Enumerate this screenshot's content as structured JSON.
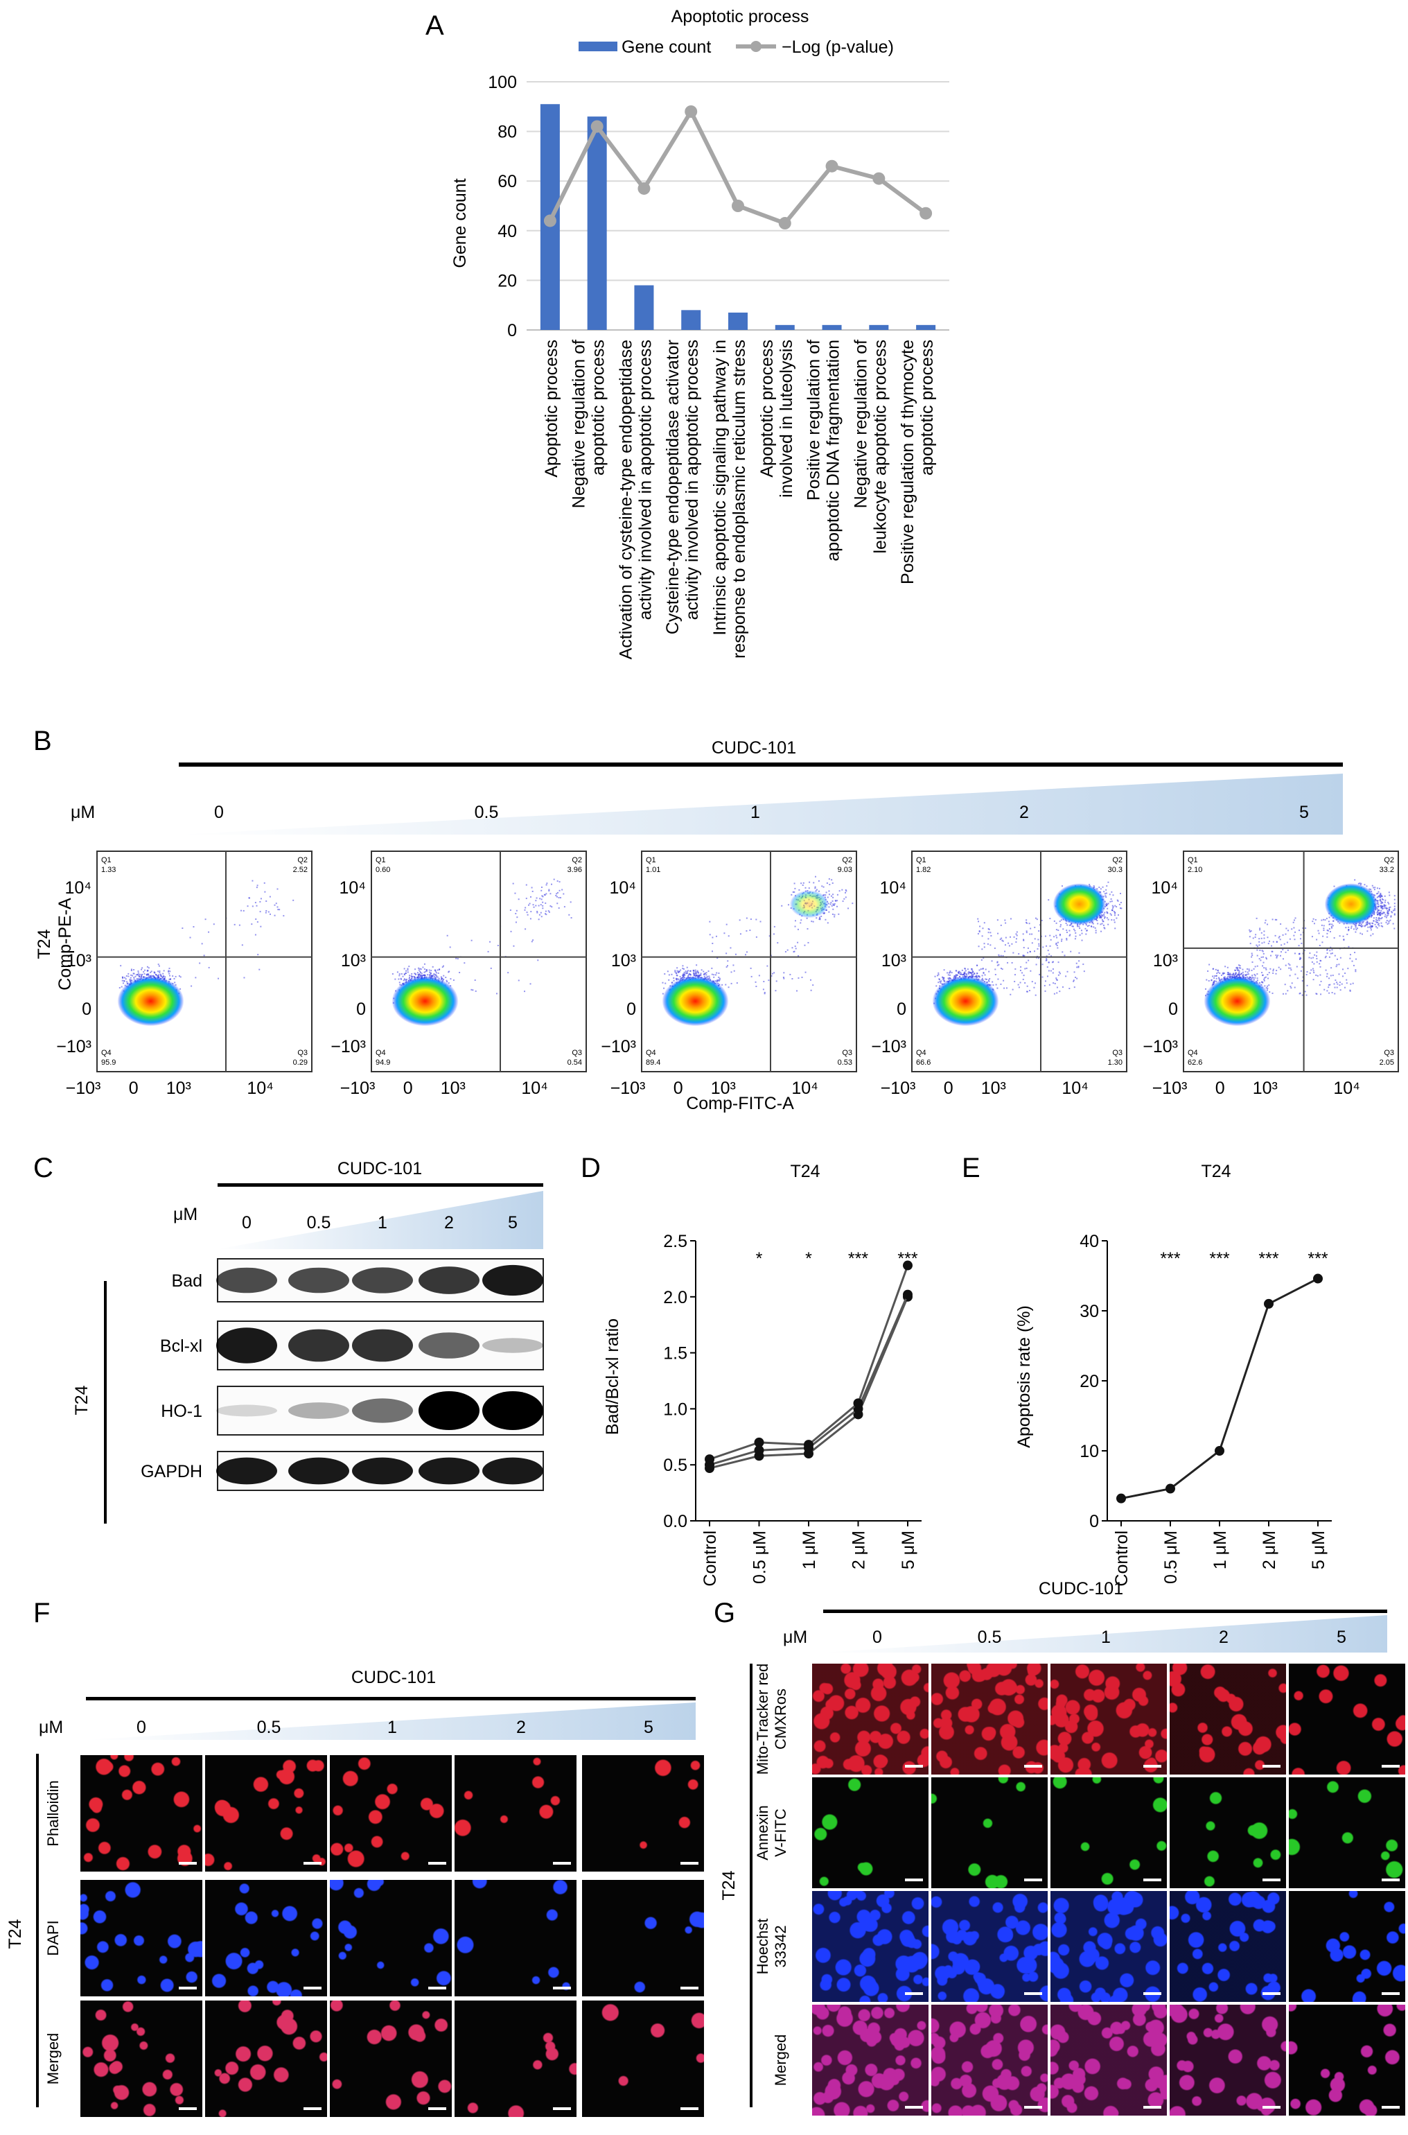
{
  "panel_letters": {
    "a": "A",
    "b": "B",
    "c": "C",
    "d": "D",
    "e": "E",
    "f": "F",
    "g": "G"
  },
  "colors": {
    "bar": "#4472c4",
    "line": "#a6a6a6",
    "triangle": "#bcd3ea",
    "red": "#c8102e",
    "blue": "#1c2fd6",
    "green": "#18c618"
  },
  "chart_data": [
    {
      "panel": "A",
      "type": "bar",
      "title": "Apoptotic process",
      "legend": {
        "bar": "Gene count",
        "line": "−Log (p-value)"
      },
      "ylabel": "Gene count",
      "ylim": [
        0,
        100
      ],
      "yticks": [
        "0",
        "20",
        "40",
        "60",
        "80",
        "100"
      ],
      "categories": [
        [
          "Apoptotic process"
        ],
        [
          "Negative regulation of",
          "apoptotic process"
        ],
        [
          "Activation of cysteine-type endopeptidase",
          "activity involved in apoptotic process"
        ],
        [
          "Cysteine-type endopeptidase activator",
          "activity involved in apoptotic process"
        ],
        [
          "Intrinsic apoptotic signaling pathway in",
          "response to endoplasmic reticulum stress"
        ],
        [
          "Apoptotic process",
          "involved in luteolysis"
        ],
        [
          "Positive regulation of",
          "apoptotic DNA fragmentation"
        ],
        [
          "Negative regulation of",
          "leukocyte apoptotic process"
        ],
        [
          "Positive regulation of thymocyte",
          "apoptotic process"
        ]
      ],
      "series": [
        {
          "name": "Gene count",
          "type": "bar",
          "values": [
            91,
            86,
            18,
            8,
            7,
            2,
            2,
            2,
            2
          ]
        },
        {
          "name": "−Log (p-value)",
          "type": "line",
          "values": [
            44,
            82,
            57,
            88,
            50,
            43,
            66,
            61,
            47
          ]
        }
      ]
    },
    {
      "panel": "D",
      "type": "line",
      "title": "T24",
      "ylabel": "Bad/Bcl-xl ratio",
      "ylim": [
        0,
        2.5
      ],
      "yticks": [
        "0.0",
        "0.5",
        "1.0",
        "1.5",
        "2.0",
        "2.5"
      ],
      "categories": [
        "Control",
        "0.5 μM",
        "1 μM",
        "2 μM",
        "5 μM"
      ],
      "significance": [
        "",
        "*",
        "*",
        "***",
        "***"
      ],
      "series": [
        {
          "values": [
            0.47,
            0.58,
            0.6,
            0.95,
            2.0
          ]
        },
        {
          "values": [
            0.5,
            0.63,
            0.65,
            1.0,
            2.02
          ]
        },
        {
          "values": [
            0.55,
            0.7,
            0.68,
            1.05,
            2.28
          ]
        }
      ]
    },
    {
      "panel": "E",
      "type": "line",
      "title": "T24",
      "ylabel": "Apoptosis rate (%)",
      "ylim": [
        0,
        40
      ],
      "yticks": [
        "0",
        "10",
        "20",
        "30",
        "40"
      ],
      "categories": [
        "Control",
        "0.5 μM",
        "1 μM",
        "2 μM",
        "5 μM"
      ],
      "significance": [
        "",
        "***",
        "***",
        "***",
        "***"
      ],
      "series": [
        {
          "values": [
            3.2,
            4.6,
            10,
            31,
            34.6
          ]
        }
      ]
    }
  ],
  "panel_b": {
    "drug": "CUDC-101",
    "unit": "μM",
    "concs": [
      "0",
      "0.5",
      "1",
      "2",
      "5"
    ],
    "cell": "T24",
    "ylabel": "Comp-PE-A",
    "xlabel": "Comp-FITC-A",
    "yticks": [
      "10⁴",
      "10³",
      "0",
      "−10³"
    ],
    "xticks": [
      "−10³",
      "0",
      "10³",
      "10⁴"
    ],
    "plots": [
      {
        "q1": "1.33",
        "q2": "2.52",
        "q3": "0.29",
        "q4": "95.9"
      },
      {
        "q1": "0.60",
        "q2": "3.96",
        "q3": "0.54",
        "q4": "94.9"
      },
      {
        "q1": "1.01",
        "q2": "9.03",
        "q3": "0.53",
        "q4": "89.4"
      },
      {
        "q1": "1.82",
        "q2": "30.3",
        "q3": "1.30",
        "q4": "66.6"
      },
      {
        "q1": "2.10",
        "q2": "33.2",
        "q3": "2.05",
        "q4": "62.6"
      }
    ],
    "gate_names": {
      "q1": "Q1",
      "q2": "Q2",
      "q3": "Q3",
      "q4": "Q4"
    }
  },
  "panel_c": {
    "drug": "CUDC-101",
    "unit": "μM",
    "concs": [
      "0",
      "0.5",
      "1",
      "2",
      "5"
    ],
    "cell": "T24",
    "blots": [
      {
        "label": "Bad",
        "intensity": [
          0.7,
          0.7,
          0.72,
          0.78,
          0.9
        ]
      },
      {
        "label": "Bcl-xl",
        "intensity": [
          0.9,
          0.8,
          0.8,
          0.6,
          0.25
        ]
      },
      {
        "label": "HO-1",
        "intensity": [
          0.15,
          0.3,
          0.55,
          1.0,
          1.0
        ]
      },
      {
        "label": "GAPDH",
        "intensity": [
          0.9,
          0.9,
          0.9,
          0.9,
          0.9
        ]
      }
    ]
  },
  "panel_f": {
    "drug": "CUDC-101",
    "unit": "μM",
    "concs": [
      "0",
      "0.5",
      "1",
      "2",
      "5"
    ],
    "cell": "T24",
    "rows": [
      "Phalloidin",
      "DAPI",
      "Merged"
    ],
    "density": [
      1.0,
      0.85,
      0.6,
      0.3,
      0.15
    ]
  },
  "panel_g": {
    "drug": "CUDC-101",
    "unit": "μM",
    "concs": [
      "0",
      "0.5",
      "1",
      "2",
      "5"
    ],
    "cell": "T24",
    "rows": [
      [
        "Mito-Tracker red",
        "CMXRos"
      ],
      [
        "Annexin",
        "V-FITC"
      ],
      [
        "Hoechst",
        "33342"
      ],
      [
        "Merged"
      ]
    ],
    "density": [
      1.0,
      0.95,
      0.85,
      0.6,
      0.3
    ]
  }
}
